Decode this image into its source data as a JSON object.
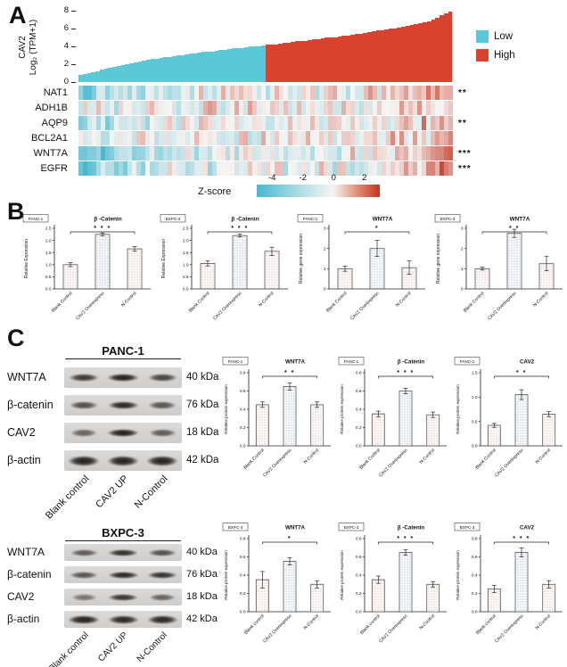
{
  "panelA": {
    "label": "A",
    "waterfall_ylabel1": "CAV2",
    "waterfall_ylabel2": "Log₂ (TPM+1)",
    "zscore_label": "Z-score",
    "legend": [
      {
        "label": "Low",
        "color": "#5bc8d8"
      },
      {
        "label": "High",
        "color": "#d9422f"
      }
    ],
    "colors": {
      "low": "#5bc8d8",
      "high": "#d9422f"
    }
  },
  "panelB": {
    "label": "B"
  },
  "panelC": {
    "label": "C",
    "blocks": [
      {
        "cell_line": "PANC-1",
        "blot": {
          "lanes": [
            "Blank control",
            "CAV2 UP",
            "N-Control"
          ],
          "rows": [
            {
              "protein": "WNT7A",
              "kda": "40 kDa",
              "bands": [
                0.75,
                0.95,
                0.7
              ]
            },
            {
              "protein": "β-catenin",
              "kda": "76 kDa",
              "bands": [
                0.6,
                0.9,
                0.55
              ]
            },
            {
              "protein": "CAV2",
              "kda": "18 kDa",
              "bands": [
                0.45,
                0.95,
                0.5
              ]
            },
            {
              "protein": "β-actin",
              "kda": "42 kDa",
              "bands": [
                0.95,
                0.95,
                0.95
              ]
            }
          ]
        }
      },
      {
        "cell_line": "BXPC-3",
        "blot": {
          "lanes": [
            "Blank control",
            "CAV2 UP",
            "N-Control"
          ],
          "rows": [
            {
              "protein": "WNT7A",
              "kda": "40 kDa",
              "bands": [
                0.5,
                0.85,
                0.6
              ]
            },
            {
              "protein": "β-catenin",
              "kda": "76 kDa",
              "bands": [
                0.55,
                0.9,
                0.8
              ]
            },
            {
              "protein": "CAV2",
              "kda": "18 kDa",
              "bands": [
                0.3,
                0.8,
                0.45
              ]
            },
            {
              "protein": "β-actin",
              "kda": "42 kDa",
              "bands": [
                0.95,
                0.9,
                0.9
              ]
            }
          ]
        }
      }
    ]
  },
  "chart_data": [
    {
      "type": "bar",
      "name": "cav2-expression-waterfall",
      "ylabel": "CAV2 Log₂ (TPM+1)",
      "yticks": [
        8,
        6,
        4,
        2,
        0
      ],
      "ymax": 8,
      "split_index": 44,
      "groups": [
        {
          "label": "Low",
          "color": "#5bc8d8"
        },
        {
          "label": "High",
          "color": "#d9422f"
        }
      ],
      "values": [
        0.8,
        0.9,
        1.0,
        1.1,
        1.2,
        1.35,
        1.5,
        1.6,
        1.7,
        1.8,
        1.9,
        2.0,
        2.1,
        2.2,
        2.3,
        2.4,
        2.5,
        2.55,
        2.6,
        2.7,
        2.75,
        2.8,
        2.9,
        2.95,
        3.0,
        3.1,
        3.15,
        3.2,
        3.3,
        3.35,
        3.4,
        3.45,
        3.5,
        3.55,
        3.6,
        3.7,
        3.75,
        3.8,
        3.85,
        3.9,
        3.95,
        4.0,
        4.05,
        4.1,
        4.15,
        4.2,
        4.25,
        4.3,
        4.35,
        4.4,
        4.5,
        4.55,
        4.6,
        4.65,
        4.7,
        4.75,
        4.8,
        4.9,
        4.95,
        5.0,
        5.05,
        5.1,
        5.2,
        5.25,
        5.3,
        5.4,
        5.45,
        5.5,
        5.6,
        5.7,
        5.75,
        5.8,
        5.9,
        6.0,
        6.05,
        6.1,
        6.2,
        6.3,
        6.4,
        6.5,
        6.6,
        6.7,
        6.8,
        7.0,
        7.2,
        7.5,
        7.7,
        7.9
      ]
    },
    {
      "type": "heatmap",
      "name": "gene-zscore-heatmap",
      "rows": [
        "NAT1",
        "ADH1B",
        "AQP9",
        "BCL2A1",
        "WNT7A",
        "EGFR"
      ],
      "row_significance": [
        "**",
        "",
        "**",
        "",
        "***",
        "***"
      ],
      "row_correlation": [
        0.55,
        0.2,
        0.5,
        0.25,
        0.85,
        0.75
      ],
      "row_base": [
        -0.1,
        0.05,
        -0.05,
        0,
        -0.45,
        -0.3
      ],
      "n_cols": 84,
      "seed": 13,
      "colorbar_label": "Z-score",
      "colorbar_ticks": [
        -4,
        -2,
        0,
        2
      ],
      "colorbar_range": [
        -5,
        3
      ],
      "low_color": "#46b8cf",
      "high_color": "#c3321f"
    },
    {
      "type": "bar",
      "panel": "B",
      "cell_line": "PANC-1",
      "title": "β -Catenin",
      "ylabel": "Relative Expression",
      "sig": "***",
      "ymax": 2.5,
      "yticks": [
        0,
        0.5,
        1,
        1.5,
        2,
        2.5
      ],
      "ytick_dec": 1,
      "categories": [
        "Blank Control",
        "CAV2 Overexpress",
        "N-Control"
      ],
      "values": [
        1.0,
        2.25,
        1.65
      ],
      "errors": [
        0.08,
        0.06,
        0.1
      ]
    },
    {
      "type": "bar",
      "panel": "B",
      "cell_line": "BXPC-3",
      "title": "β -Catenin",
      "ylabel": "Relative Expression",
      "sig": "***",
      "ymax": 2.5,
      "yticks": [
        0,
        0.5,
        1,
        1.5,
        2,
        2.5
      ],
      "ytick_dec": 1,
      "categories": [
        "Blank Control",
        "CAV2 Overexpress",
        "N-Control"
      ],
      "values": [
        1.05,
        2.2,
        1.55
      ],
      "errors": [
        0.1,
        0.06,
        0.17
      ]
    },
    {
      "type": "bar",
      "panel": "B",
      "cell_line": "PANC-1",
      "title": "WNT7A",
      "ylabel": "Relative gene expression",
      "sig": "*",
      "ymax": 3,
      "yticks": [
        0,
        1,
        2,
        3
      ],
      "ytick_dec": 0,
      "categories": [
        "Blank Control",
        "CAV2 Overexpress",
        "N-Control"
      ],
      "values": [
        1.0,
        2.0,
        1.05
      ],
      "errors": [
        0.12,
        0.4,
        0.33
      ]
    },
    {
      "type": "bar",
      "panel": "B",
      "cell_line": "BXPC-3",
      "title": "WNT7A",
      "ylabel": "Relative gene expression",
      "sig": "**",
      "ymax": 3,
      "yticks": [
        0,
        1,
        2,
        3
      ],
      "ytick_dec": 0,
      "categories": [
        "Blank Control",
        "CAV2 Overexpress",
        "N-Control"
      ],
      "values": [
        1.0,
        2.75,
        1.25
      ],
      "errors": [
        0.07,
        0.2,
        0.35
      ]
    },
    {
      "type": "bar",
      "panel": "C",
      "cell_line": "PANC-1",
      "title": "WNT7A",
      "ylabel": "Relative protein expression",
      "sig": "**",
      "ymax": 0.8,
      "yticks": [
        0,
        0.2,
        0.4,
        0.6,
        0.8
      ],
      "ytick_dec": 1,
      "categories": [
        "Blank Control",
        "CAV2 Overexpress",
        "N-Control"
      ],
      "values": [
        0.45,
        0.65,
        0.45
      ],
      "errors": [
        0.03,
        0.04,
        0.03
      ]
    },
    {
      "type": "bar",
      "panel": "C",
      "cell_line": "PANC-1",
      "title": "β -Catenin",
      "ylabel": "Relative protein expression",
      "sig": "***",
      "ymax": 0.8,
      "yticks": [
        0,
        0.2,
        0.4,
        0.6,
        0.8
      ],
      "ytick_dec": 1,
      "categories": [
        "Blank Control",
        "CAV2 Overexpress",
        "N-Control"
      ],
      "values": [
        0.35,
        0.6,
        0.34
      ],
      "errors": [
        0.03,
        0.03,
        0.03
      ]
    },
    {
      "type": "bar",
      "panel": "C",
      "cell_line": "PANC-1",
      "title": "CAV2",
      "ylabel": "Relative protein expression",
      "sig": "**",
      "ymax": 1.5,
      "yticks": [
        0,
        0.5,
        1,
        1.5
      ],
      "ytick_dec": 1,
      "categories": [
        "Blank Control",
        "CAV2 Overexpress",
        "N-Control"
      ],
      "values": [
        0.42,
        1.05,
        0.65
      ],
      "errors": [
        0.04,
        0.1,
        0.05
      ]
    },
    {
      "type": "bar",
      "panel": "C",
      "cell_line": "BXPC-3",
      "title": "WNT7A",
      "ylabel": "Relative protein expression",
      "sig": "*",
      "ymax": 0.8,
      "yticks": [
        0,
        0.2,
        0.4,
        0.6,
        0.8
      ],
      "ytick_dec": 1,
      "categories": [
        "Blank control",
        "CAV2 Overexpress",
        "N-Control"
      ],
      "values": [
        0.35,
        0.55,
        0.3
      ],
      "errors": [
        0.09,
        0.04,
        0.04
      ]
    },
    {
      "type": "bar",
      "panel": "C",
      "cell_line": "BXPC-3",
      "title": "β -Catenin",
      "ylabel": "Relative protein expression",
      "sig": "***",
      "ymax": 0.8,
      "yticks": [
        0,
        0.2,
        0.4,
        0.6,
        0.8
      ],
      "ytick_dec": 1,
      "categories": [
        "Blank control",
        "CAV2 Overexpress",
        "N-Control"
      ],
      "values": [
        0.35,
        0.65,
        0.3
      ],
      "errors": [
        0.04,
        0.03,
        0.03
      ]
    },
    {
      "type": "bar",
      "panel": "C",
      "cell_line": "BXPC-3",
      "title": "CAV2",
      "ylabel": "Relative protein expression",
      "sig": "***",
      "ymax": 0.8,
      "yticks": [
        0,
        0.2,
        0.4,
        0.6,
        0.8
      ],
      "ytick_dec": 1,
      "categories": [
        "Blank control",
        "CAV2 Overexpress",
        "N-Control"
      ],
      "values": [
        0.25,
        0.65,
        0.3
      ],
      "errors": [
        0.04,
        0.05,
        0.04
      ]
    }
  ]
}
